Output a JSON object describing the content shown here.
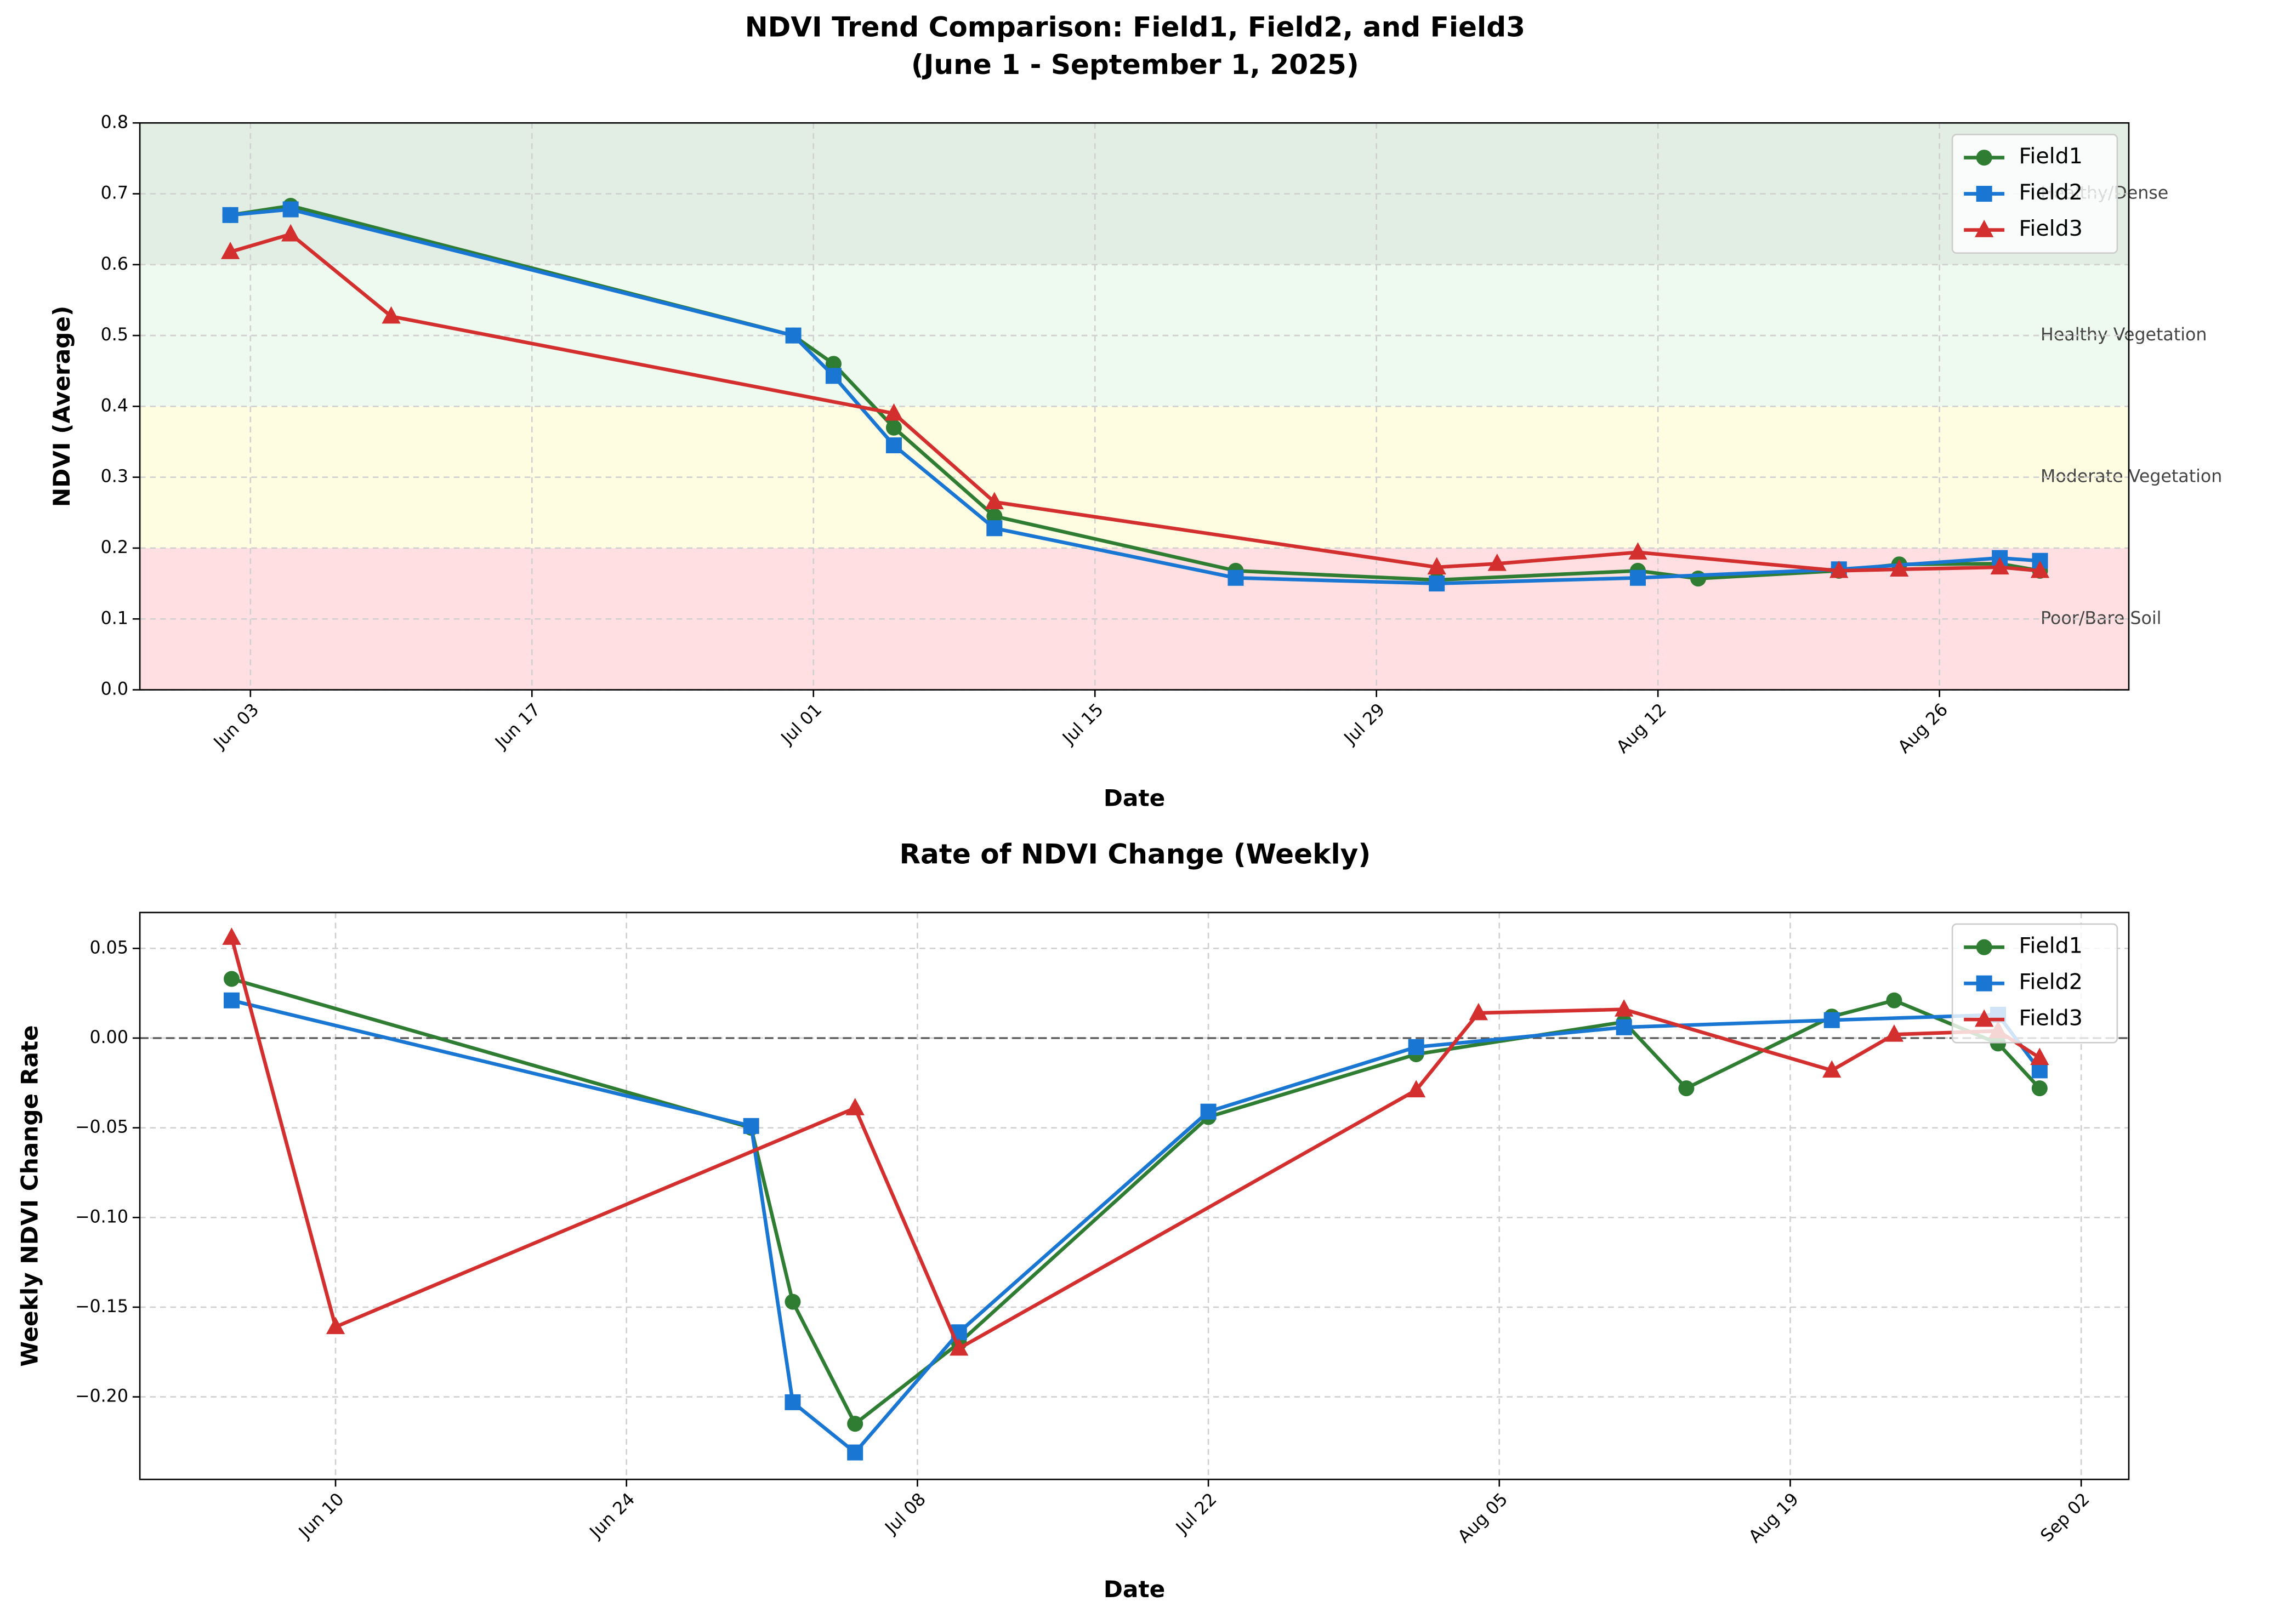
{
  "chart_data": [
    {
      "type": "line",
      "title": "NDVI Trend Comparison: Field1, Field2, and Field3",
      "subtitle": "(June 1 - September 1, 2025)",
      "x_label": "Date",
      "y_label": "NDVI (Average)",
      "xlim": [
        "2025-05-28T12:00",
        "2025-09-04T10:00"
      ],
      "xticks": [
        {
          "value": "2025-06-03",
          "label": "Jun 03"
        },
        {
          "value": "2025-06-17",
          "label": "Jun 17"
        },
        {
          "value": "2025-07-01",
          "label": "Jul 01"
        },
        {
          "value": "2025-07-15",
          "label": "Jul 15"
        },
        {
          "value": "2025-07-29",
          "label": "Jul 29"
        },
        {
          "value": "2025-08-12",
          "label": "Aug 12"
        },
        {
          "value": "2025-08-26",
          "label": "Aug 26"
        }
      ],
      "ylim": [
        0,
        0.8
      ],
      "yticks": [
        {
          "value": 0,
          "label": "0.0"
        },
        {
          "value": 0.1,
          "label": "0.1"
        },
        {
          "value": 0.2,
          "label": "0.2"
        },
        {
          "value": 0.3,
          "label": "0.3"
        },
        {
          "value": 0.4,
          "label": "0.4"
        },
        {
          "value": 0.5,
          "label": "0.5"
        },
        {
          "value": 0.6,
          "label": "0.6"
        },
        {
          "value": 0.7,
          "label": "0.7"
        },
        {
          "value": 0.8,
          "label": "0.8"
        }
      ],
      "grid": true,
      "legend": "upper right",
      "bands": [
        {
          "range": [
            0,
            0.2
          ],
          "color": "#ffdfe2",
          "label": "Poor/Bare Soil"
        },
        {
          "range": [
            0.2,
            0.4
          ],
          "color": "#fefde2",
          "label": "Moderate Vegetation"
        },
        {
          "range": [
            0.4,
            0.6
          ],
          "color": "#eef9ef",
          "label": "Healthy Vegetation"
        },
        {
          "range": [
            0.6,
            0.8
          ],
          "color": "#e2eee3",
          "label": "Healthy/Dense"
        }
      ],
      "series": [
        {
          "name": "Field1",
          "color": "#2e7d32",
          "marker": "circle",
          "x": [
            "2025-06-02",
            "2025-06-05",
            "2025-06-30",
            "2025-07-02",
            "2025-07-05",
            "2025-07-10",
            "2025-07-22",
            "2025-08-01",
            "2025-08-11",
            "2025-08-14",
            "2025-08-21",
            "2025-08-24",
            "2025-08-29",
            "2025-08-31"
          ],
          "values": [
            0.67,
            0.683,
            0.5,
            0.46,
            0.37,
            0.245,
            0.168,
            0.155,
            0.168,
            0.157,
            0.168,
            0.177,
            0.178,
            0.168
          ]
        },
        {
          "name": "Field2",
          "color": "#1976d2",
          "marker": "square",
          "x": [
            "2025-06-02",
            "2025-06-05",
            "2025-06-30",
            "2025-07-02",
            "2025-07-05",
            "2025-07-10",
            "2025-07-22",
            "2025-08-01",
            "2025-08-11",
            "2025-08-21",
            "2025-08-29",
            "2025-08-31"
          ],
          "values": [
            0.67,
            0.678,
            0.5,
            0.443,
            0.345,
            0.228,
            0.158,
            0.15,
            0.158,
            0.17,
            0.186,
            0.182
          ]
        },
        {
          "name": "Field3",
          "color": "#d32f2f",
          "marker": "triangle",
          "x": [
            "2025-06-02",
            "2025-06-05",
            "2025-06-10",
            "2025-07-05",
            "2025-07-10",
            "2025-08-01",
            "2025-08-04",
            "2025-08-11",
            "2025-08-21",
            "2025-08-24",
            "2025-08-29",
            "2025-08-31"
          ],
          "values": [
            0.618,
            0.643,
            0.527,
            0.39,
            0.265,
            0.173,
            0.178,
            0.194,
            0.168,
            0.17,
            0.173,
            0.168
          ]
        }
      ]
    },
    {
      "type": "line",
      "title": "Rate of NDVI Change (Weekly)",
      "x_label": "Date",
      "y_label": "Weekly NDVI Change Rate",
      "xlim": [
        "2025-05-31T14:00",
        "2025-09-04T07:00"
      ],
      "xticks": [
        {
          "value": "2025-06-10",
          "label": "Jun 10"
        },
        {
          "value": "2025-06-24",
          "label": "Jun 24"
        },
        {
          "value": "2025-07-08",
          "label": "Jul 08"
        },
        {
          "value": "2025-07-22",
          "label": "Jul 22"
        },
        {
          "value": "2025-08-05",
          "label": "Aug 05"
        },
        {
          "value": "2025-08-19",
          "label": "Aug 19"
        },
        {
          "value": "2025-09-02",
          "label": "Sep 02"
        }
      ],
      "ylim": [
        -0.246,
        0.07
      ],
      "yticks": [
        {
          "value": -0.2,
          "label": "−0.20"
        },
        {
          "value": -0.15,
          "label": "−0.15"
        },
        {
          "value": -0.1,
          "label": "−0.10"
        },
        {
          "value": -0.05,
          "label": "−0.05"
        },
        {
          "value": 0,
          "label": "0.00"
        },
        {
          "value": 0.05,
          "label": "0.05"
        }
      ],
      "hline": 0,
      "grid": true,
      "legend": "upper right",
      "series": [
        {
          "name": "Field1",
          "color": "#2e7d32",
          "marker": "circle",
          "x": [
            "2025-06-05",
            "2025-06-30",
            "2025-07-02",
            "2025-07-05",
            "2025-07-10",
            "2025-07-22",
            "2025-08-01",
            "2025-08-11",
            "2025-08-14",
            "2025-08-21",
            "2025-08-24",
            "2025-08-29",
            "2025-08-31"
          ],
          "values": [
            0.033,
            -0.05,
            -0.147,
            -0.215,
            -0.17,
            -0.044,
            -0.009,
            0.009,
            -0.028,
            0.012,
            0.021,
            -0.003,
            -0.028
          ]
        },
        {
          "name": "Field2",
          "color": "#1976d2",
          "marker": "square",
          "x": [
            "2025-06-05",
            "2025-06-30",
            "2025-07-02",
            "2025-07-05",
            "2025-07-10",
            "2025-07-22",
            "2025-08-01",
            "2025-08-11",
            "2025-08-21",
            "2025-08-29",
            "2025-08-31"
          ],
          "values": [
            0.021,
            -0.049,
            -0.203,
            -0.231,
            -0.164,
            -0.041,
            -0.005,
            0.006,
            0.01,
            0.013,
            -0.018
          ]
        },
        {
          "name": "Field3",
          "color": "#d32f2f",
          "marker": "triangle",
          "x": [
            "2025-06-05",
            "2025-06-10",
            "2025-07-05",
            "2025-07-10",
            "2025-08-01",
            "2025-08-04",
            "2025-08-11",
            "2025-08-21",
            "2025-08-24",
            "2025-08-29",
            "2025-08-31"
          ],
          "values": [
            0.056,
            -0.161,
            -0.039,
            -0.173,
            -0.029,
            0.014,
            0.016,
            -0.018,
            0.002,
            0.004,
            -0.011
          ]
        }
      ]
    }
  ]
}
